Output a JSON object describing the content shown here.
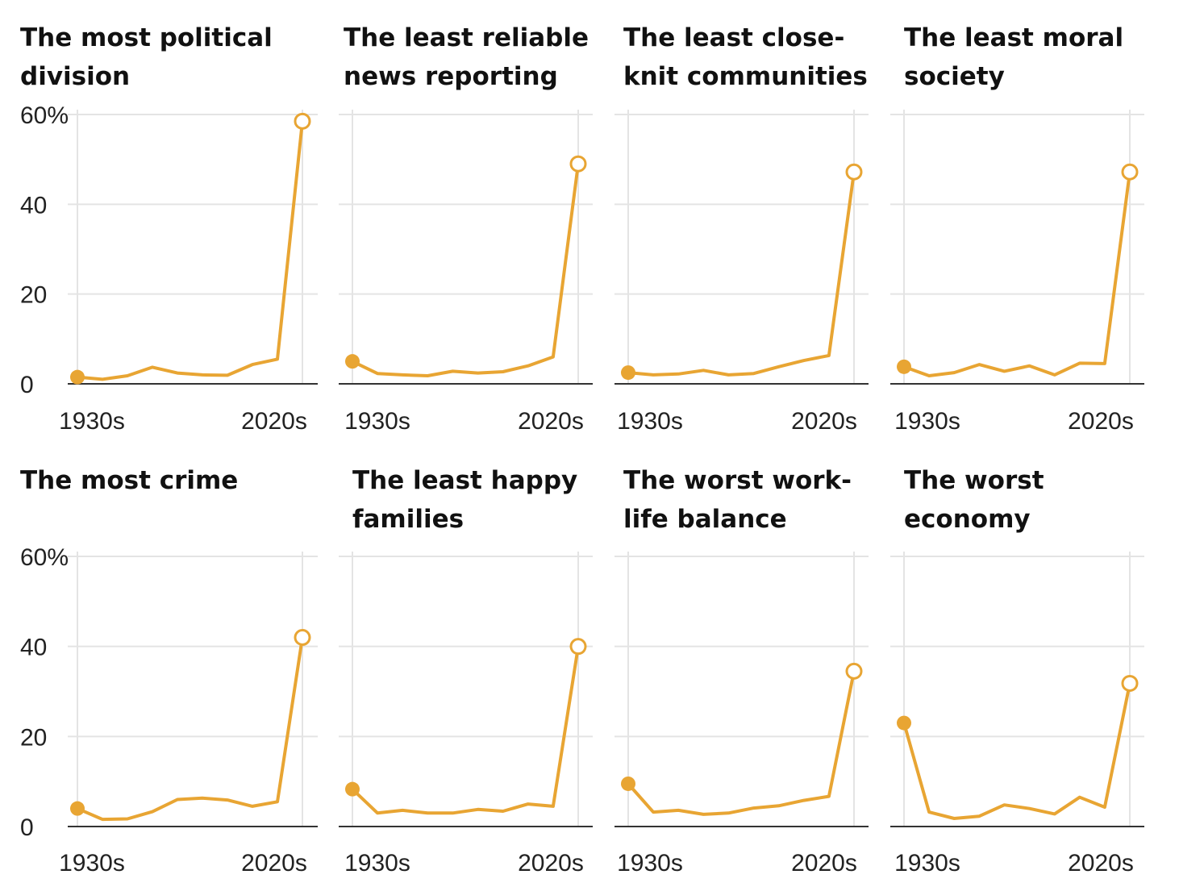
{
  "colors": {
    "line": "#E8A533",
    "grid": "#e4e4e4",
    "baseline": "#333333",
    "text": "#111111"
  },
  "chart_data": [
    {
      "type": "line",
      "title_lines": [
        "The most political",
        "division"
      ],
      "x": [
        "1930s",
        "1940s",
        "1950s",
        "1960s",
        "1970s",
        "1980s",
        "1990s",
        "2000s",
        "2010s",
        "2020s"
      ],
      "values": [
        1.5,
        1,
        1.8,
        3.7,
        2.4,
        2,
        1.9,
        4.3,
        5.5,
        58.5
      ],
      "ylim": [
        0,
        60
      ],
      "y_ticks": [
        "0",
        "20",
        "40",
        "60%"
      ],
      "x_tick_labels": [
        "1930s",
        "2020s"
      ]
    },
    {
      "type": "line",
      "title_lines": [
        "The least reliable",
        "news reporting"
      ],
      "x": [
        "1930s",
        "1940s",
        "1950s",
        "1960s",
        "1970s",
        "1980s",
        "1990s",
        "2000s",
        "2010s",
        "2020s"
      ],
      "values": [
        5,
        2.3,
        2,
        1.8,
        2.8,
        2.4,
        2.7,
        4,
        6,
        49
      ],
      "ylim": [
        0,
        60
      ],
      "x_tick_labels": [
        "1930s",
        "2020s"
      ]
    },
    {
      "type": "line",
      "title_lines": [
        "The least close-",
        "knit communities"
      ],
      "x": [
        "1930s",
        "1940s",
        "1950s",
        "1960s",
        "1970s",
        "1980s",
        "1990s",
        "2000s",
        "2010s",
        "2020s"
      ],
      "values": [
        2.5,
        2,
        2.2,
        3,
        2,
        2.3,
        3.8,
        5.2,
        6.3,
        47.2
      ],
      "ylim": [
        0,
        60
      ],
      "x_tick_labels": [
        "1930s",
        "2020s"
      ]
    },
    {
      "type": "line",
      "title_lines": [
        "The least moral",
        "society"
      ],
      "x": [
        "1930s",
        "1940s",
        "1950s",
        "1960s",
        "1970s",
        "1980s",
        "1990s",
        "2000s",
        "2010s",
        "2020s"
      ],
      "values": [
        3.8,
        1.8,
        2.5,
        4.3,
        2.8,
        4,
        2,
        4.6,
        4.5,
        47.2
      ],
      "ylim": [
        0,
        60
      ],
      "x_tick_labels": [
        "1930s",
        "2020s"
      ]
    },
    {
      "type": "line",
      "title_lines": [
        "The most crime"
      ],
      "x": [
        "1930s",
        "1940s",
        "1950s",
        "1960s",
        "1970s",
        "1980s",
        "1990s",
        "2000s",
        "2010s",
        "2020s"
      ],
      "values": [
        4,
        1.6,
        1.7,
        3.3,
        6,
        6.3,
        5.9,
        4.5,
        5.5,
        42
      ],
      "ylim": [
        0,
        60
      ],
      "y_ticks": [
        "0",
        "20",
        "40",
        "60%"
      ],
      "x_tick_labels": [
        "1930s",
        "2020s"
      ]
    },
    {
      "type": "line",
      "title_lines": [
        "The least happy",
        "families"
      ],
      "x": [
        "1930s",
        "1940s",
        "1950s",
        "1960s",
        "1970s",
        "1980s",
        "1990s",
        "2000s",
        "2010s",
        "2020s"
      ],
      "values": [
        8.3,
        3,
        3.6,
        3,
        3,
        3.8,
        3.4,
        5,
        4.5,
        40
      ],
      "ylim": [
        0,
        60
      ],
      "x_tick_labels": [
        "1930s",
        "2020s"
      ]
    },
    {
      "type": "line",
      "title_lines": [
        "The worst work-",
        "life balance"
      ],
      "x": [
        "1930s",
        "1940s",
        "1950s",
        "1960s",
        "1970s",
        "1980s",
        "1990s",
        "2000s",
        "2010s",
        "2020s"
      ],
      "values": [
        9.5,
        3.2,
        3.6,
        2.7,
        3,
        4.1,
        4.6,
        5.8,
        6.7,
        34.5
      ],
      "ylim": [
        0,
        60
      ],
      "x_tick_labels": [
        "1930s",
        "2020s"
      ]
    },
    {
      "type": "line",
      "title_lines": [
        "The worst",
        "economy"
      ],
      "x": [
        "1930s",
        "1940s",
        "1950s",
        "1960s",
        "1970s",
        "1980s",
        "1990s",
        "2000s",
        "2010s",
        "2020s"
      ],
      "values": [
        23,
        3.2,
        1.8,
        2.3,
        4.8,
        4,
        2.8,
        6.5,
        4.3,
        31.8
      ],
      "ylim": [
        0,
        60
      ],
      "x_tick_labels": [
        "1930s",
        "2020s"
      ]
    }
  ]
}
